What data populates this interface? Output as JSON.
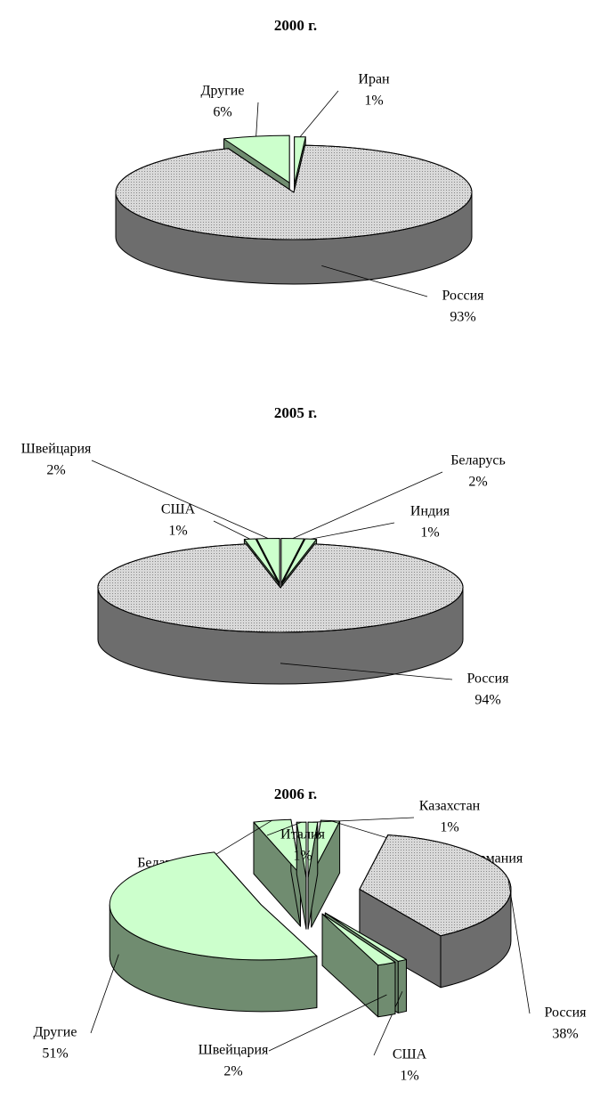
{
  "chart_data": [
    {
      "type": "pie",
      "title": "2000 г.",
      "categories": [
        "Иран",
        "Россия",
        "Другие"
      ],
      "values": [
        1,
        93,
        6
      ],
      "value_labels": [
        "1%",
        "93%",
        "6%"
      ],
      "colors": [
        "#ccffcc",
        "#d9d9d9",
        "#ccffcc"
      ]
    },
    {
      "type": "pie",
      "title": "2005 г.",
      "categories": [
        "Беларусь",
        "Индия",
        "Россия",
        "США",
        "Швейцария"
      ],
      "values": [
        2,
        1,
        94,
        1,
        2
      ],
      "value_labels": [
        "2%",
        "1%",
        "94%",
        "1%",
        "2%"
      ],
      "colors": [
        "#ccffcc",
        "#ccffcc",
        "#d9d9d9",
        "#ccffcc",
        "#ccffcc"
      ]
    },
    {
      "type": "pie",
      "title": "2006 г.",
      "categories": [
        "Казахстан",
        "Германия",
        "Россия",
        "США",
        "Швейцария",
        "Другие",
        "Беларусь",
        "Италия"
      ],
      "values": [
        1,
        2,
        38,
        1,
        2,
        51,
        4,
        1
      ],
      "value_labels": [
        "1%",
        "2%",
        "38%",
        "1%",
        "2%",
        "51%",
        "4%",
        "1%"
      ],
      "colors": [
        "#ccffcc",
        "#ccffcc",
        "#d9d9d9",
        "#ccffcc",
        "#ccffcc",
        "#ccffcc",
        "#ccffcc",
        "#ccffcc"
      ]
    }
  ]
}
